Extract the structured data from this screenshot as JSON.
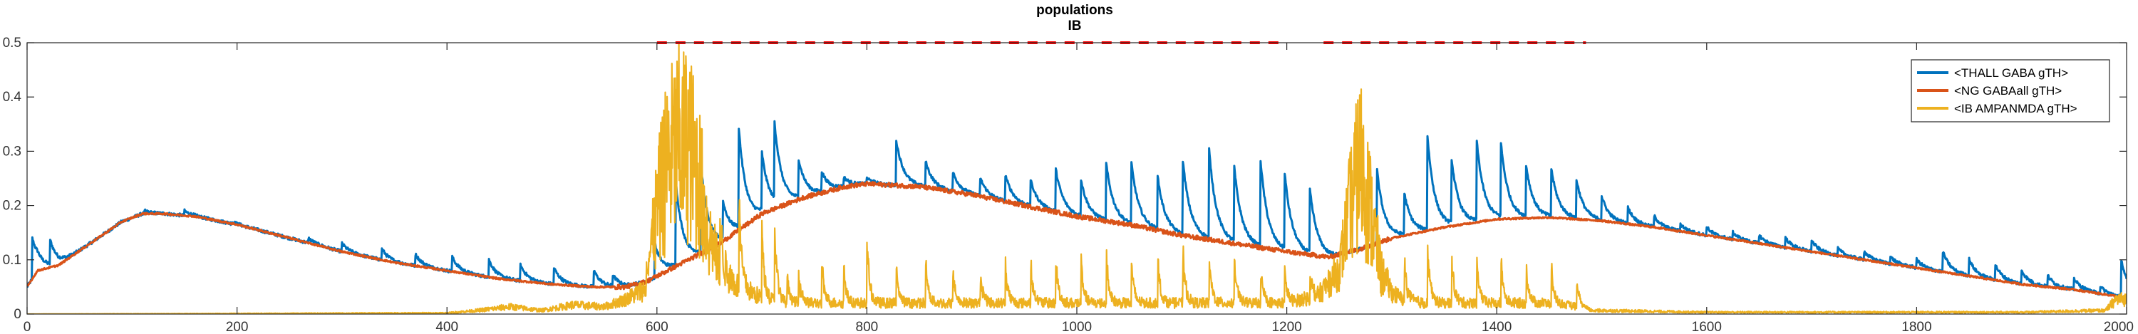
{
  "chart_data": {
    "type": "line",
    "title": "populations",
    "subtitle": "IB",
    "xlabel": "",
    "ylabel": "",
    "xlim": [
      0,
      2000
    ],
    "ylim": [
      0,
      0.5
    ],
    "xticks": [
      0,
      200,
      400,
      600,
      800,
      1000,
      1200,
      1400,
      1600,
      1800,
      2000
    ],
    "yticks": [
      0,
      0.1,
      0.2,
      0.3,
      0.4,
      0.5
    ],
    "ytick_labels": [
      "0",
      "0.1",
      "0.2",
      "0.3",
      "0.4",
      "0.5"
    ],
    "grid": false,
    "legend_position": "top-right",
    "legend": [
      {
        "name": "<THALL GABA gTH>",
        "color": "#0072BD"
      },
      {
        "name": "<NG GABAall gTH>",
        "color": "#D95319"
      },
      {
        "name": "<IB AMPANMDA gTH>",
        "color": "#EDB120"
      }
    ],
    "reference_line": {
      "color": "#FF0000",
      "style": "dashed",
      "y": 0.5,
      "segments": [
        [
          600,
          1195
        ],
        [
          1235,
          1485
        ]
      ]
    },
    "series": [
      {
        "name": "<THALL GABA gTH>",
        "color": "#0072BD",
        "baseline": {
          "x": [
            0,
            10,
            30,
            60,
            90,
            110,
            130,
            160,
            200,
            250,
            300,
            350,
            400,
            450,
            500,
            540,
            570,
            590,
            620,
            660,
            700,
            740,
            780,
            800,
            850,
            900,
            950,
            1000,
            1050,
            1100,
            1150,
            1200,
            1240,
            1270,
            1300,
            1350,
            1400,
            1450,
            1500,
            1550,
            1600,
            1650,
            1700,
            1750,
            1800,
            1850,
            1900,
            1950,
            2000
          ],
          "y": [
            0.05,
            0.08,
            0.09,
            0.13,
            0.17,
            0.185,
            0.185,
            0.18,
            0.165,
            0.14,
            0.115,
            0.095,
            0.08,
            0.065,
            0.055,
            0.05,
            0.05,
            0.06,
            0.09,
            0.13,
            0.185,
            0.215,
            0.235,
            0.24,
            0.235,
            0.22,
            0.2,
            0.18,
            0.165,
            0.145,
            0.13,
            0.115,
            0.105,
            0.12,
            0.14,
            0.16,
            0.175,
            0.178,
            0.172,
            0.16,
            0.145,
            0.13,
            0.115,
            0.1,
            0.085,
            0.07,
            0.055,
            0.045,
            0.03
          ]
        },
        "events": [
          [
            5,
            0.14
          ],
          [
            22,
            0.13
          ],
          [
            52,
            0.11
          ],
          [
            112,
            0.19
          ],
          [
            150,
            0.19
          ],
          [
            195,
            0.17
          ],
          [
            238,
            0.145
          ],
          [
            268,
            0.14
          ],
          [
            300,
            0.13
          ],
          [
            338,
            0.12
          ],
          [
            370,
            0.11
          ],
          [
            405,
            0.105
          ],
          [
            440,
            0.1
          ],
          [
            470,
            0.09
          ],
          [
            502,
            0.085
          ],
          [
            540,
            0.08
          ],
          [
            558,
            0.07
          ],
          [
            598,
            0.13
          ],
          [
            618,
            0.24
          ],
          [
            642,
            0.27
          ],
          [
            663,
            0.2
          ],
          [
            678,
            0.335
          ],
          [
            700,
            0.29
          ],
          [
            712,
            0.335
          ],
          [
            735,
            0.28
          ],
          [
            757,
            0.26
          ],
          [
            778,
            0.25
          ],
          [
            800,
            0.25
          ],
          [
            828,
            0.32
          ],
          [
            856,
            0.28
          ],
          [
            882,
            0.26
          ],
          [
            908,
            0.25
          ],
          [
            932,
            0.255
          ],
          [
            956,
            0.245
          ],
          [
            980,
            0.265
          ],
          [
            1004,
            0.245
          ],
          [
            1028,
            0.275
          ],
          [
            1052,
            0.275
          ],
          [
            1077,
            0.25
          ],
          [
            1101,
            0.28
          ],
          [
            1126,
            0.3
          ],
          [
            1150,
            0.265
          ],
          [
            1175,
            0.28
          ],
          [
            1198,
            0.255
          ],
          [
            1222,
            0.225
          ],
          [
            1286,
            0.265
          ],
          [
            1312,
            0.22
          ],
          [
            1334,
            0.325
          ],
          [
            1357,
            0.28
          ],
          [
            1381,
            0.315
          ],
          [
            1404,
            0.31
          ],
          [
            1428,
            0.27
          ],
          [
            1452,
            0.265
          ],
          [
            1476,
            0.245
          ],
          [
            1500,
            0.215
          ],
          [
            1525,
            0.195
          ],
          [
            1550,
            0.18
          ],
          [
            1575,
            0.165
          ],
          [
            1600,
            0.16
          ],
          [
            1625,
            0.15
          ],
          [
            1650,
            0.145
          ],
          [
            1675,
            0.14
          ],
          [
            1700,
            0.135
          ],
          [
            1725,
            0.12
          ],
          [
            1750,
            0.115
          ],
          [
            1775,
            0.105
          ],
          [
            1800,
            0.1
          ],
          [
            1825,
            0.115
          ],
          [
            1850,
            0.1
          ],
          [
            1875,
            0.09
          ],
          [
            1900,
            0.08
          ],
          [
            1925,
            0.07
          ],
          [
            1950,
            0.065
          ],
          [
            1975,
            0.05
          ],
          [
            1995,
            0.1
          ]
        ]
      },
      {
        "name": "<NG GABAall gTH>",
        "color": "#D95319",
        "x": [
          0,
          10,
          30,
          60,
          90,
          110,
          130,
          160,
          200,
          250,
          300,
          350,
          400,
          450,
          500,
          540,
          570,
          590,
          620,
          660,
          700,
          740,
          780,
          800,
          850,
          900,
          950,
          1000,
          1050,
          1100,
          1150,
          1200,
          1240,
          1270,
          1300,
          1350,
          1400,
          1450,
          1500,
          1550,
          1600,
          1650,
          1700,
          1750,
          1800,
          1850,
          1900,
          1950,
          2000
        ],
        "y": [
          0.05,
          0.08,
          0.09,
          0.13,
          0.17,
          0.185,
          0.185,
          0.18,
          0.165,
          0.14,
          0.115,
          0.095,
          0.08,
          0.065,
          0.055,
          0.05,
          0.05,
          0.06,
          0.09,
          0.13,
          0.185,
          0.215,
          0.235,
          0.24,
          0.235,
          0.22,
          0.2,
          0.18,
          0.165,
          0.145,
          0.13,
          0.115,
          0.105,
          0.12,
          0.14,
          0.16,
          0.175,
          0.178,
          0.172,
          0.16,
          0.145,
          0.13,
          0.115,
          0.1,
          0.085,
          0.07,
          0.055,
          0.045,
          0.03
        ]
      },
      {
        "name": "<IB AMPANMDA gTH>",
        "color": "#EDB120",
        "x": [
          0,
          400,
          430,
          460,
          490,
          520,
          550,
          570,
          590,
          600,
          610,
          620,
          630,
          640,
          650,
          660,
          680,
          700,
          720,
          760,
          800,
          900,
          1000,
          1100,
          1200,
          1230,
          1250,
          1260,
          1270,
          1280,
          1290,
          1300,
          1310,
          1330,
          1360,
          1400,
          1450,
          1480,
          1490,
          1600,
          1900,
          1980,
          1990,
          2000
        ],
        "y": [
          0.0,
          0.003,
          0.01,
          0.02,
          0.01,
          0.025,
          0.02,
          0.04,
          0.07,
          0.3,
          0.45,
          0.5,
          0.5,
          0.4,
          0.22,
          0.12,
          0.07,
          0.045,
          0.03,
          0.03,
          0.03,
          0.03,
          0.03,
          0.03,
          0.03,
          0.05,
          0.12,
          0.3,
          0.45,
          0.3,
          0.12,
          0.06,
          0.04,
          0.03,
          0.03,
          0.03,
          0.03,
          0.02,
          0.01,
          0.005,
          0.005,
          0.01,
          0.04,
          0.04
        ],
        "spikes": [
          [
            590,
            0.06
          ],
          [
            660,
            0.13
          ],
          [
            678,
            0.24
          ],
          [
            700,
            0.15
          ],
          [
            712,
            0.18
          ],
          [
            724,
            0.07
          ],
          [
            735,
            0.06
          ],
          [
            757,
            0.09
          ],
          [
            778,
            0.08
          ],
          [
            800,
            0.14
          ],
          [
            828,
            0.08
          ],
          [
            856,
            0.09
          ],
          [
            882,
            0.07
          ],
          [
            908,
            0.08
          ],
          [
            932,
            0.09
          ],
          [
            956,
            0.1
          ],
          [
            980,
            0.1
          ],
          [
            1004,
            0.09
          ],
          [
            1028,
            0.12
          ],
          [
            1052,
            0.09
          ],
          [
            1077,
            0.1
          ],
          [
            1101,
            0.12
          ],
          [
            1126,
            0.11
          ],
          [
            1150,
            0.11
          ],
          [
            1175,
            0.09
          ],
          [
            1198,
            0.07
          ],
          [
            1222,
            0.06
          ],
          [
            1312,
            0.09
          ],
          [
            1334,
            0.14
          ],
          [
            1357,
            0.11
          ],
          [
            1381,
            0.1
          ],
          [
            1404,
            0.1
          ],
          [
            1428,
            0.09
          ],
          [
            1452,
            0.08
          ],
          [
            1476,
            0.06
          ]
        ]
      }
    ]
  }
}
